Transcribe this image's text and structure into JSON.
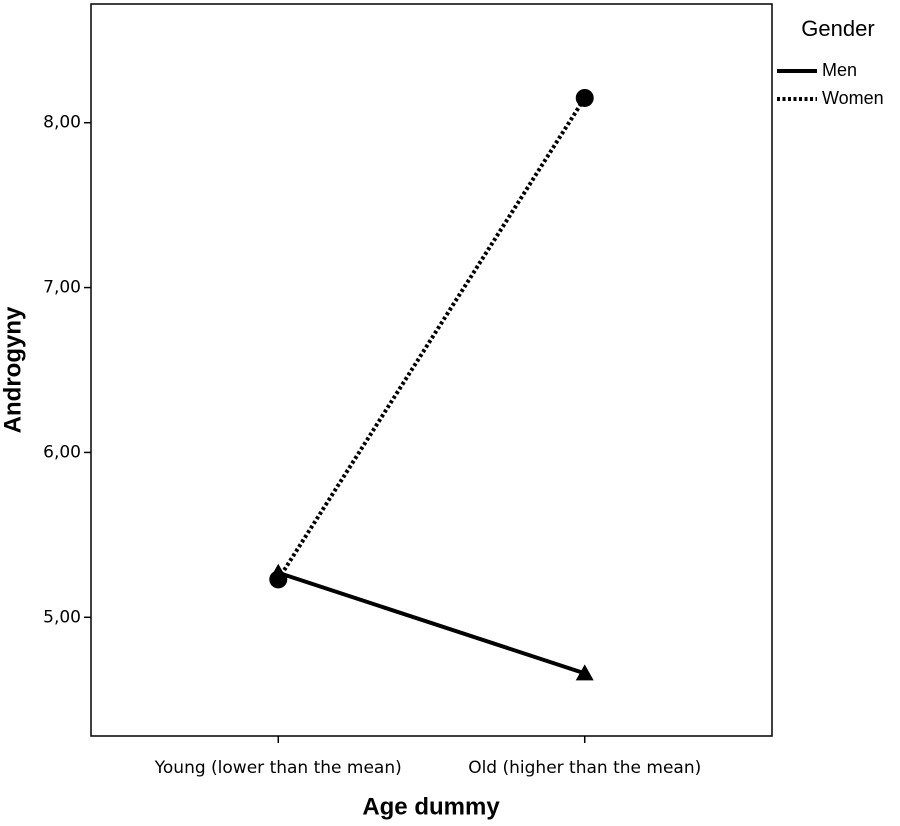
{
  "chart_data": {
    "type": "line",
    "x_label": "Age dummy",
    "y_label": "Androgyny",
    "categories": [
      "Young (lower than the mean)",
      "Old (higher than the mean)"
    ],
    "series": [
      {
        "name": "Men",
        "color": "#000000",
        "line_style": "solid",
        "marker": "triangle",
        "values": [
          5.27,
          4.66
        ]
      },
      {
        "name": "Women",
        "color": "#000000",
        "line_style": "dotted",
        "marker": "circle",
        "values": [
          5.23,
          8.15
        ]
      }
    ],
    "ylim": [
      4.28,
      8.72
    ],
    "yticks": [
      {
        "value": 5,
        "label": "5,00"
      },
      {
        "value": 6,
        "label": "6,00"
      },
      {
        "value": 7,
        "label": "7,00"
      },
      {
        "value": 8,
        "label": "8,00"
      }
    ],
    "legend_title": "Gender",
    "legend_position": "right"
  }
}
